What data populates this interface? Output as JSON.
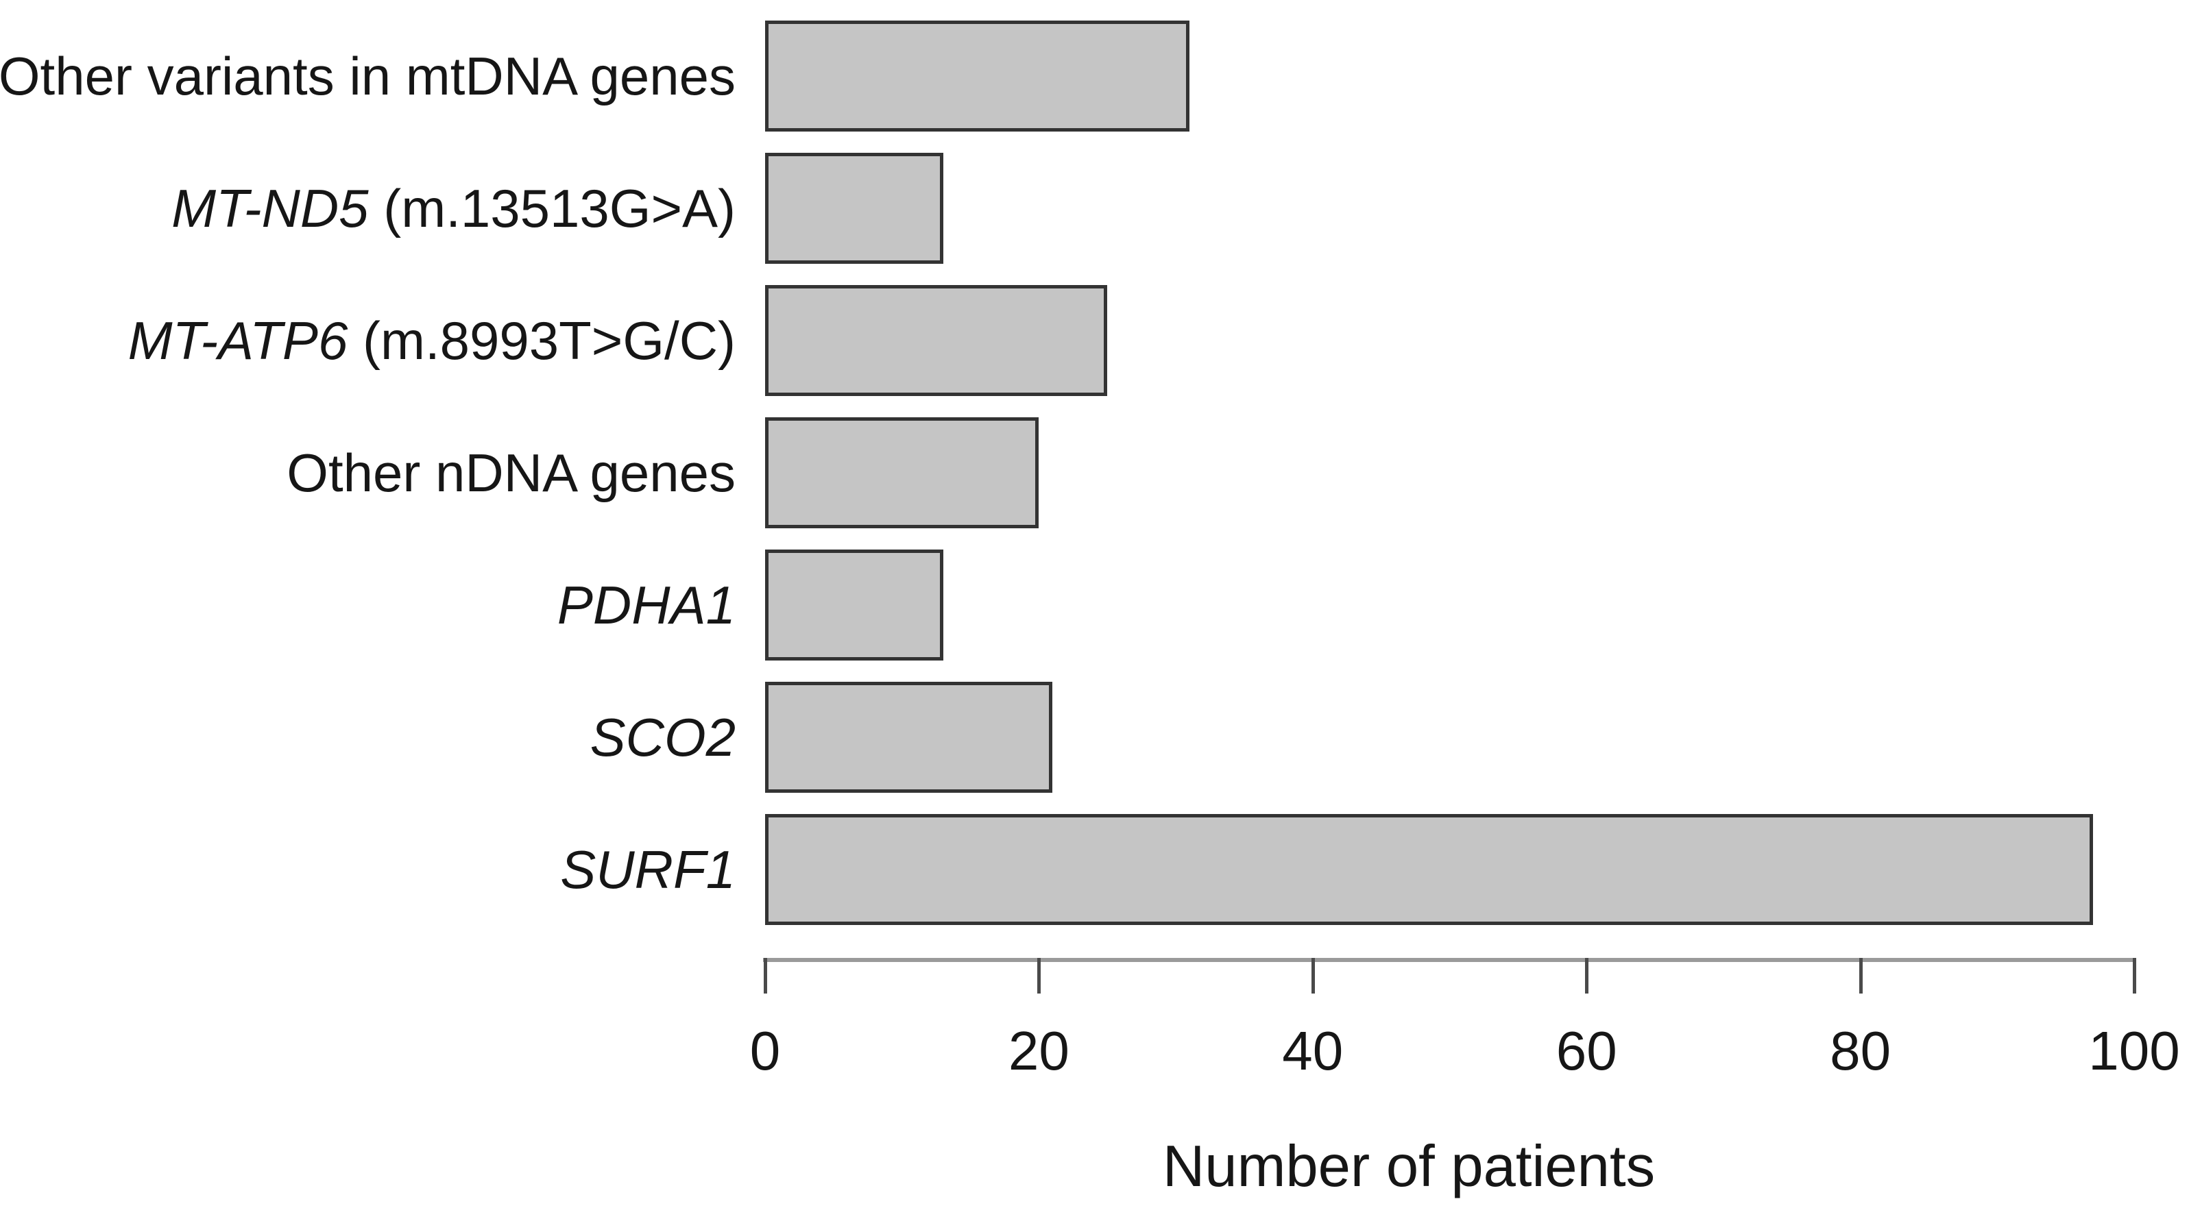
{
  "chart_data": {
    "type": "bar",
    "orientation": "horizontal",
    "title": "",
    "xlabel": "Number of patients",
    "ylabel": "",
    "xlim": [
      0,
      100
    ],
    "xticks": [
      0,
      20,
      40,
      60,
      80,
      100
    ],
    "grid": false,
    "legend": false,
    "categories": [
      "Other variants in mtDNA genes",
      "MT-ND5 (m.13513G>A)",
      "MT-ATP6 (m.8993T>G/C)",
      "Other nDNA genes",
      "PDHA1",
      "SCO2",
      "SURF1"
    ],
    "values": [
      31,
      13,
      25,
      20,
      13,
      21,
      97
    ],
    "category_segments": [
      [
        {
          "text": "Other variants in mtDNA genes",
          "italic": false
        }
      ],
      [
        {
          "text": "MT-ND5",
          "italic": true
        },
        {
          "text": " (m.13513G>A)",
          "italic": false
        }
      ],
      [
        {
          "text": "MT-ATP6",
          "italic": true
        },
        {
          "text": " (m.8993T>G/C)",
          "italic": false
        }
      ],
      [
        {
          "text": "Other nDNA genes",
          "italic": false
        }
      ],
      [
        {
          "text": "PDHA1",
          "italic": true
        }
      ],
      [
        {
          "text": "SCO2",
          "italic": true
        }
      ],
      [
        {
          "text": "SURF1",
          "italic": true
        }
      ]
    ],
    "colors": {
      "bar_fill": "#c5c5c5",
      "bar_border": "#333333",
      "axis_line": "#9a9a9a",
      "tick": "#4a4a4a",
      "text": "#161616",
      "background": "#ffffff"
    }
  }
}
